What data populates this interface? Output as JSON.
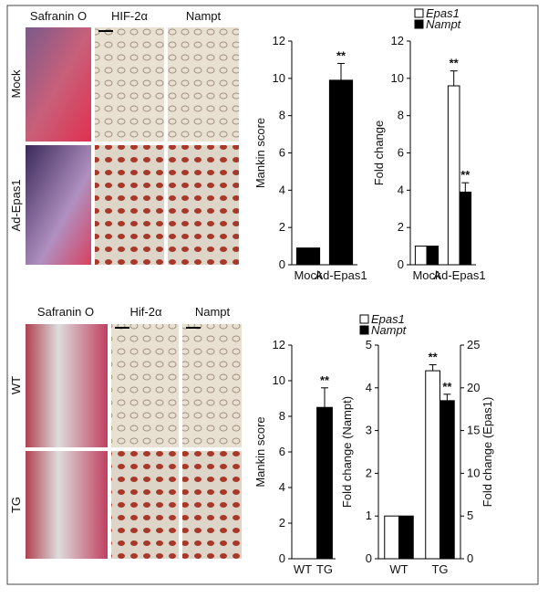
{
  "panels": [
    {
      "columns": [
        "Safranin O",
        "HIF-2α",
        "Nampt"
      ],
      "rows": [
        "Mock",
        "Ad-Epas1"
      ]
    },
    {
      "columns": [
        "Safranin O",
        "Hif-2α",
        "Nampt"
      ],
      "rows": [
        "WT",
        "TG"
      ]
    }
  ],
  "chart_data": [
    {
      "type": "bar",
      "ylabel": "Mankin score",
      "categories": [
        "Mock",
        "Ad-Epas1"
      ],
      "series": [
        {
          "color": "#000000",
          "values": [
            0.9,
            9.9
          ],
          "errors": [
            0,
            0.9
          ],
          "significance": [
            null,
            "**"
          ]
        }
      ],
      "ylim": [
        0,
        12
      ],
      "yticks": [
        0,
        2,
        4,
        6,
        8,
        10,
        12
      ]
    },
    {
      "type": "bar",
      "ylabel": "Fold change",
      "categories": [
        "Mock",
        "Ad-Epas1"
      ],
      "series": [
        {
          "name": "Epas1",
          "color": "#ffffff",
          "values": [
            1,
            9.6
          ],
          "errors": [
            0,
            0.8
          ],
          "significance": [
            null,
            "**"
          ]
        },
        {
          "name": "Nampt",
          "color": "#000000",
          "values": [
            1,
            3.9
          ],
          "errors": [
            0,
            0.5
          ],
          "significance": [
            null,
            "**"
          ]
        }
      ],
      "ylim": [
        0,
        12
      ],
      "yticks": [
        0,
        2,
        4,
        6,
        8,
        10,
        12
      ],
      "legend": "top-left"
    },
    {
      "type": "bar",
      "ylabel": "Mankin score",
      "categories": [
        "WT",
        "TG"
      ],
      "series": [
        {
          "color": "#000000",
          "values": [
            0,
            8.5
          ],
          "errors": [
            0,
            1.1
          ],
          "significance": [
            null,
            "**"
          ]
        }
      ],
      "ylim": [
        0,
        12
      ],
      "yticks": [
        0,
        2,
        4,
        6,
        8,
        10,
        12
      ]
    },
    {
      "type": "bar",
      "ylabel": "Fold change (Nampt)",
      "y2label": "Fold change (Epas1)",
      "categories": [
        "WT",
        "TG"
      ],
      "series": [
        {
          "name": "Epas1",
          "color": "#ffffff",
          "axis": "y2",
          "values": [
            5,
            22
          ],
          "errors": [
            0,
            0.7
          ],
          "significance": [
            null,
            "**"
          ]
        },
        {
          "name": "Nampt",
          "color": "#000000",
          "values": [
            1,
            3.7
          ],
          "errors": [
            0,
            0.15
          ],
          "significance": [
            null,
            "**"
          ]
        }
      ],
      "ylim": [
        0,
        5
      ],
      "yticks": [
        0,
        1,
        2,
        3,
        4,
        5
      ],
      "y2lim": [
        0,
        25
      ],
      "y2ticks": [
        0,
        5,
        10,
        15,
        20,
        25
      ],
      "legend": "top-left"
    }
  ]
}
